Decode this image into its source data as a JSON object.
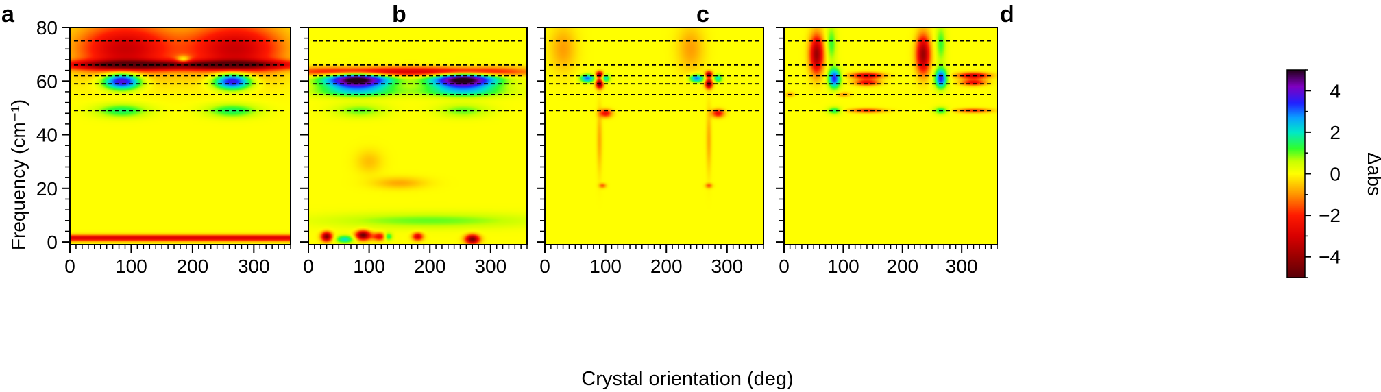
{
  "chart_data": [
    {
      "type": "heatmap",
      "panel_label": "a",
      "x_ticks": [
        0,
        100,
        200,
        300
      ],
      "xlim": [
        0,
        360
      ],
      "ylabel": "Frequency (cm⁻¹)",
      "y_ticks": [
        0,
        20,
        40,
        60,
        80
      ],
      "ylim": [
        -1,
        80
      ],
      "dashed_lines": [
        75,
        66,
        62,
        59,
        55,
        49
      ],
      "features": [
        {
          "x": 90,
          "y": 72,
          "sx": 55,
          "sy": 7,
          "v": -3.2
        },
        {
          "x": 270,
          "y": 72,
          "sx": 55,
          "sy": 7,
          "v": -3.2
        },
        {
          "x": 90,
          "y": 66,
          "sx": 80,
          "sy": 1.2,
          "v": -3.5
        },
        {
          "x": 270,
          "y": 66,
          "sx": 80,
          "sy": 1.2,
          "v": -3.5
        },
        {
          "x": 85,
          "y": 60,
          "sx": 22,
          "sy": 2.2,
          "v": 4.6
        },
        {
          "x": 265,
          "y": 60,
          "sx": 22,
          "sy": 2.2,
          "v": 4.4
        },
        {
          "x": 85,
          "y": 49,
          "sx": 30,
          "sy": 1.8,
          "v": 1.5
        },
        {
          "x": 265,
          "y": 49,
          "sx": 30,
          "sy": 1.8,
          "v": 1.5
        },
        {
          "x": 180,
          "y": 1.5,
          "sx": 900,
          "sy": 0.8,
          "v": -3.0
        },
        {
          "x": 185,
          "y": 68,
          "sx": 8,
          "sy": 1,
          "v": 2.0
        }
      ]
    },
    {
      "type": "heatmap",
      "panel_label": "b",
      "x_ticks": [
        0,
        100,
        200,
        300
      ],
      "xlim": [
        0,
        360
      ],
      "y_ticks": [
        0,
        20,
        40,
        60,
        80
      ],
      "ylim": [
        -1,
        80
      ],
      "dashed_lines": [
        75,
        66,
        62,
        59,
        55,
        49
      ],
      "features": [
        {
          "x": 80,
          "y": 60.5,
          "sx": 38,
          "sy": 2.2,
          "v": 5.5
        },
        {
          "x": 255,
          "y": 60.5,
          "sx": 38,
          "sy": 2.2,
          "v": 5.5
        },
        {
          "x": 80,
          "y": 63.5,
          "sx": 70,
          "sy": 1.2,
          "v": -3.5
        },
        {
          "x": 255,
          "y": 63.5,
          "sx": 70,
          "sy": 1.2,
          "v": -3.5
        },
        {
          "x": 80,
          "y": 56,
          "sx": 50,
          "sy": 1.5,
          "v": 1.6
        },
        {
          "x": 255,
          "y": 56,
          "sx": 50,
          "sy": 1.5,
          "v": 1.6
        },
        {
          "x": 85,
          "y": 49,
          "sx": 30,
          "sy": 1.8,
          "v": 1.0
        },
        {
          "x": 255,
          "y": 49,
          "sx": 30,
          "sy": 1.8,
          "v": 1.0
        },
        {
          "x": 30,
          "y": 2,
          "sx": 6,
          "sy": 1.2,
          "v": -4.5
        },
        {
          "x": 90,
          "y": 2.5,
          "sx": 8,
          "sy": 1.2,
          "v": -4.8
        },
        {
          "x": 270,
          "y": 1,
          "sx": 8,
          "sy": 1.2,
          "v": -4.5
        },
        {
          "x": 130,
          "y": 2,
          "sx": 6,
          "sy": 1,
          "v": 3.0
        },
        {
          "x": 120,
          "y": 2,
          "sx": 10,
          "sy": 1,
          "v": -3.0
        },
        {
          "x": 180,
          "y": 2,
          "sx": 6,
          "sy": 1,
          "v": -3.0
        },
        {
          "x": 60,
          "y": 1,
          "sx": 10,
          "sy": 1,
          "v": 2.0
        },
        {
          "x": 200,
          "y": 8,
          "sx": 120,
          "sy": 2,
          "v": 1.0
        },
        {
          "x": 150,
          "y": 22,
          "sx": 30,
          "sy": 1.5,
          "v": -0.8
        },
        {
          "x": 100,
          "y": 30,
          "sx": 15,
          "sy": 3,
          "v": -0.6
        }
      ]
    },
    {
      "type": "heatmap",
      "panel_label": "c",
      "x_ticks": [
        0,
        100,
        200,
        300
      ],
      "xlim": [
        0,
        360
      ],
      "y_ticks": [
        0,
        20,
        40,
        60,
        80
      ],
      "ylim": [
        -1,
        80
      ],
      "dashed_lines": [
        75,
        66,
        62,
        59,
        55,
        49
      ],
      "features": [
        {
          "x": 30,
          "y": 72,
          "sx": 15,
          "sy": 6,
          "v": -0.9
        },
        {
          "x": 240,
          "y": 72,
          "sx": 15,
          "sy": 6,
          "v": -0.9
        },
        {
          "x": 70,
          "y": 61,
          "sx": 8,
          "sy": 1,
          "v": 3.0
        },
        {
          "x": 250,
          "y": 61,
          "sx": 8,
          "sy": 1,
          "v": 3.0
        },
        {
          "x": 90,
          "y": 59,
          "sx": 4,
          "sy": 1.2,
          "v": -4.8
        },
        {
          "x": 270,
          "y": 59,
          "sx": 4,
          "sy": 1.2,
          "v": -4.8
        },
        {
          "x": 90,
          "y": 62.5,
          "sx": 4,
          "sy": 0.8,
          "v": -4.0
        },
        {
          "x": 270,
          "y": 62.5,
          "sx": 4,
          "sy": 0.8,
          "v": -4.0
        },
        {
          "x": 100,
          "y": 61,
          "sx": 5,
          "sy": 1,
          "v": 2.0
        },
        {
          "x": 285,
          "y": 61,
          "sx": 5,
          "sy": 1,
          "v": 2.0
        },
        {
          "x": 100,
          "y": 48,
          "sx": 7,
          "sy": 1,
          "v": -2.5
        },
        {
          "x": 285,
          "y": 48,
          "sx": 7,
          "sy": 1,
          "v": -2.5
        },
        {
          "x": 90,
          "y": 38,
          "sx": 3,
          "sy": 8,
          "v": -0.8
        },
        {
          "x": 270,
          "y": 38,
          "sx": 3,
          "sy": 8,
          "v": -0.8
        },
        {
          "x": 95,
          "y": 21,
          "sx": 4,
          "sy": 0.6,
          "v": -1.5
        },
        {
          "x": 270,
          "y": 21,
          "sx": 4,
          "sy": 0.6,
          "v": -1.5
        }
      ]
    },
    {
      "type": "heatmap",
      "panel_label": "d",
      "x_ticks": [
        0,
        100,
        200,
        300
      ],
      "xlim": [
        0,
        360
      ],
      "y_ticks": [
        0,
        20,
        40,
        60,
        80
      ],
      "ylim": [
        -1,
        80
      ],
      "dashed_lines": [
        75,
        66,
        62,
        59,
        55,
        49
      ],
      "features": [
        {
          "x": 55,
          "y": 70,
          "sx": 8,
          "sy": 5,
          "v": -4.0
        },
        {
          "x": 235,
          "y": 70,
          "sx": 8,
          "sy": 5,
          "v": -4.0
        },
        {
          "x": 80,
          "y": 74,
          "sx": 6,
          "sy": 5,
          "v": 1.2
        },
        {
          "x": 265,
          "y": 74,
          "sx": 6,
          "sy": 5,
          "v": 1.2
        },
        {
          "x": 85,
          "y": 61,
          "sx": 7,
          "sy": 2.5,
          "v": 3.5
        },
        {
          "x": 265,
          "y": 61,
          "sx": 7,
          "sy": 2.5,
          "v": 3.5
        },
        {
          "x": 140,
          "y": 62,
          "sx": 18,
          "sy": 0.8,
          "v": -3.2
        },
        {
          "x": 320,
          "y": 62,
          "sx": 18,
          "sy": 0.8,
          "v": -3.2
        },
        {
          "x": 140,
          "y": 59.5,
          "sx": 14,
          "sy": 0.8,
          "v": -2.5
        },
        {
          "x": 320,
          "y": 59.5,
          "sx": 14,
          "sy": 0.8,
          "v": -2.5
        },
        {
          "x": 85,
          "y": 49,
          "sx": 8,
          "sy": 1,
          "v": 1.5
        },
        {
          "x": 265,
          "y": 49,
          "sx": 8,
          "sy": 1,
          "v": 1.5
        },
        {
          "x": 140,
          "y": 49,
          "sx": 20,
          "sy": 0.6,
          "v": -1.8
        },
        {
          "x": 320,
          "y": 49,
          "sx": 20,
          "sy": 0.6,
          "v": -1.8
        },
        {
          "x": 10,
          "y": 55,
          "sx": 5,
          "sy": 0.6,
          "v": -1.0
        },
        {
          "x": 100,
          "y": 55,
          "sx": 8,
          "sy": 0.6,
          "v": -1.0
        }
      ]
    }
  ],
  "shared": {
    "xlabel": "Crystal orientation (deg)",
    "colorbar": {
      "label": "Δabs",
      "ticks": [
        "4",
        "2",
        "0",
        "−2",
        "−4"
      ],
      "tick_values": [
        4,
        2,
        0,
        -2,
        -4
      ],
      "range": [
        -5,
        5
      ],
      "colors": [
        [
          -5,
          "#5a0008"
        ],
        [
          -4,
          "#9a0000"
        ],
        [
          -3,
          "#d80000"
        ],
        [
          -2,
          "#ff1a00"
        ],
        [
          -1,
          "#ff9400"
        ],
        [
          -0.4,
          "#ffd400"
        ],
        [
          0,
          "#ffff00"
        ],
        [
          0.6,
          "#c8ff00"
        ],
        [
          1.2,
          "#30ff2a"
        ],
        [
          2,
          "#00e8c8"
        ],
        [
          2.7,
          "#0aa0ff"
        ],
        [
          3.4,
          "#2020ff"
        ],
        [
          4.2,
          "#8000c0"
        ],
        [
          5,
          "#220018"
        ]
      ]
    }
  }
}
